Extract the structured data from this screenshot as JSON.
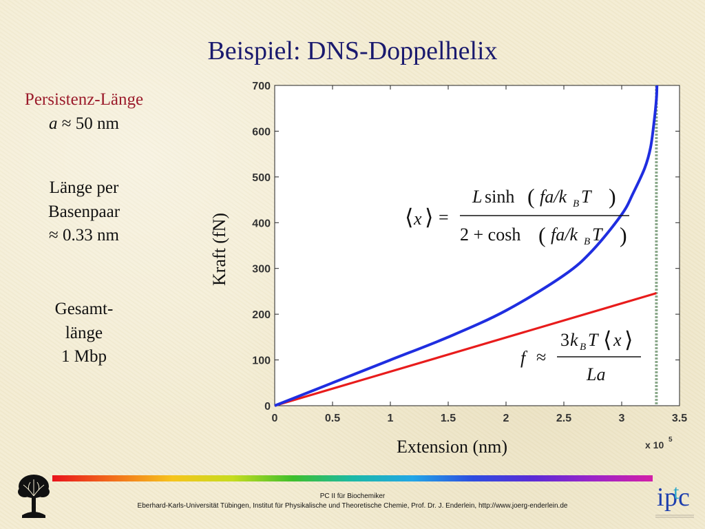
{
  "slide": {
    "title": "Beispiel: DNS-Doppelhelix",
    "persistence_label": "Persistenz-Länge",
    "persistence_symbol": "a",
    "persistence_value": "≈ 50 nm",
    "basepair_line1": "Länge per",
    "basepair_line2": "Basenpaar",
    "basepair_line3": "≈ 0.33 nm",
    "total_line1": "Gesamt-",
    "total_line2": "länge",
    "total_line3": "1 Mbp"
  },
  "formulas": {
    "wlc_lhs": "⟨x⟩ =",
    "wlc_num_L": "L",
    "wlc_num_fn": "sinh",
    "wlc_arg": "fa/kBT",
    "wlc_den_2": "2 + cosh",
    "linear_lhs": "f ≈",
    "linear_num": "3kBT⟨x⟩",
    "linear_den": "La"
  },
  "footer": {
    "line1": "PC II für Biochemiker",
    "line2": "Eberhard-Karls-Universität Tübingen, Institut für Physikalische und Theoretische Chemie, Prof. Dr. J. Enderlein, http://www.joerg-enderlein.de",
    "logo_letters": "ipc"
  },
  "colors": {
    "title": "#1a1a6e",
    "accent_red": "#9b1b2b",
    "series_wlc": "#1f2ee0",
    "series_linear": "#e81c1c",
    "dashed_limit": "#8aa88a"
  },
  "chart_data": {
    "type": "line",
    "title": "",
    "xlabel": "Extension (nm)",
    "ylabel": "Kraft (fN)",
    "x_multiplier": "x 10^5",
    "xlim": [
      0,
      3.5
    ],
    "ylim": [
      0,
      700
    ],
    "x_ticks": [
      0,
      0.5,
      1,
      1.5,
      2,
      2.5,
      3,
      3.5
    ],
    "x_tick_labels": [
      "0",
      "0.5",
      "1",
      "1.5",
      "2",
      "2.5",
      "3",
      "3.5"
    ],
    "y_ticks": [
      0,
      100,
      200,
      300,
      400,
      500,
      600,
      700
    ],
    "y_tick_labels": [
      "0",
      "100",
      "200",
      "300",
      "400",
      "500",
      "600",
      "700"
    ],
    "grid": false,
    "vertical_limit_x": 3.3,
    "series": [
      {
        "key": "wlc",
        "x": [
          0,
          0.5,
          1.0,
          1.5,
          2.0,
          2.5,
          2.75,
          3.0,
          3.1,
          3.2,
          3.25,
          3.28,
          3.3,
          3.305
        ],
        "y": [
          0,
          50,
          100,
          150,
          208,
          285,
          340,
          418,
          465,
          520,
          565,
          620,
          670,
          700
        ]
      },
      {
        "key": "linear",
        "x": [
          0,
          3.3
        ],
        "y": [
          0,
          246
        ]
      }
    ]
  }
}
